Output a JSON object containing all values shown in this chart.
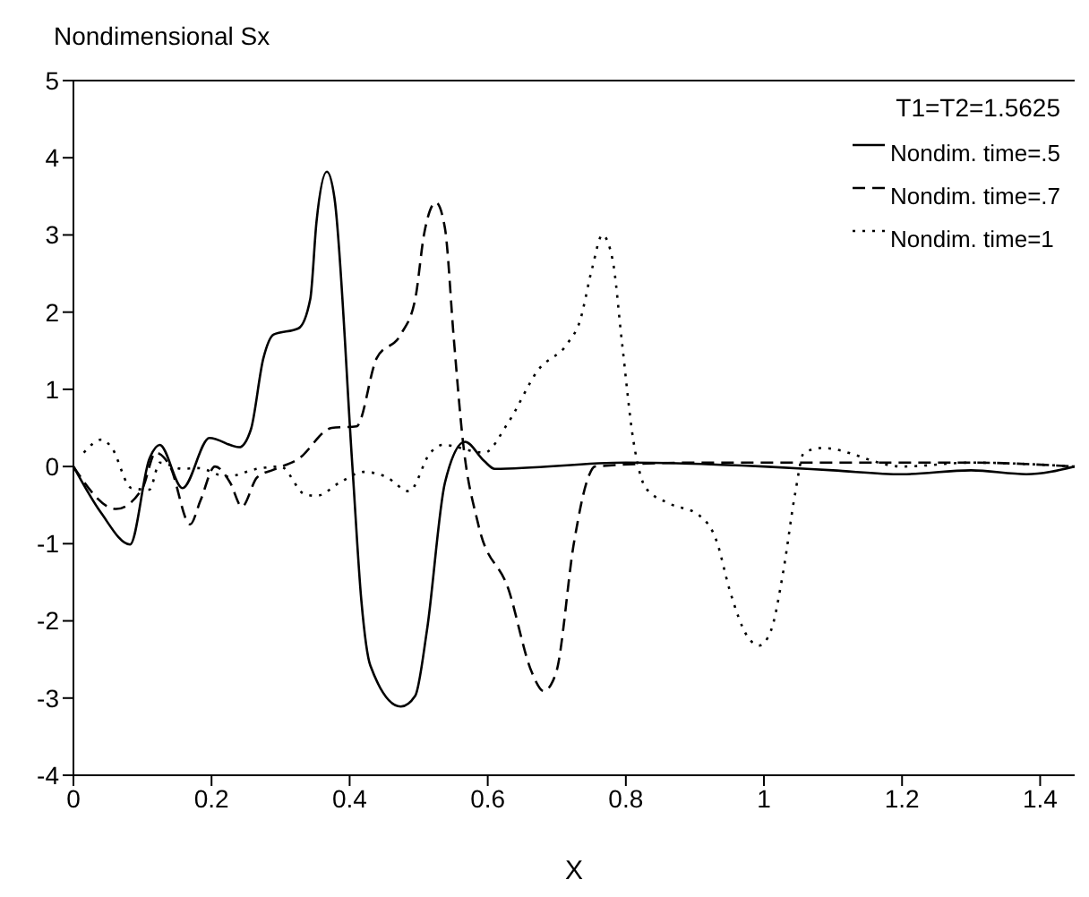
{
  "chart_data": {
    "type": "line",
    "ylabel": "Nondimensional Sx",
    "xlabel": "X",
    "annotations": [
      "T1=T2=1.5625"
    ],
    "xlim": [
      0,
      1.45
    ],
    "xticks": [
      0,
      0.2,
      0.4,
      0.6,
      0.8,
      1,
      1.2,
      1.4
    ],
    "ylim": [
      -4,
      5
    ],
    "yticks": [
      -4,
      -3,
      -2,
      -1,
      0,
      1,
      2,
      3,
      4,
      5
    ],
    "legend": "top right",
    "marker": "none",
    "series": [
      {
        "name": "Nondim. time=.5",
        "color": "#000000",
        "line_style": "solid",
        "x": [
          0,
          0.04,
          0.082,
          0.11,
          0.125,
          0.158,
          0.197,
          0.24,
          0.257,
          0.275,
          0.29,
          0.326,
          0.343,
          0.352,
          0.367,
          0.378,
          0.404,
          0.417,
          0.43,
          0.474,
          0.495,
          0.512,
          0.538,
          0.567,
          0.595,
          0.61,
          0.8,
          1.0,
          1.1,
          1.2,
          1.3,
          1.38,
          1.45
        ],
        "values": [
          0,
          -0.6,
          -1.01,
          0.1,
          0.28,
          -0.28,
          0.37,
          0.25,
          0.48,
          1.4,
          1.71,
          1.79,
          2.17,
          3.17,
          3.82,
          3.48,
          0,
          -1.74,
          -2.58,
          -3.11,
          -2.97,
          -2.12,
          -0.21,
          0.32,
          0.07,
          -0.03,
          0.05,
          0,
          -0.05,
          -0.1,
          -0.05,
          -0.1,
          0
        ]
      },
      {
        "name": "Nondim. time=.7",
        "color": "#000000",
        "line_style": "dashed",
        "x": [
          0,
          0.062,
          0.1,
          0.119,
          0.14,
          0.169,
          0.184,
          0.205,
          0.227,
          0.244,
          0.266,
          0.29,
          0.326,
          0.374,
          0.41,
          0.439,
          0.474,
          0.495,
          0.508,
          0.525,
          0.538,
          0.551,
          0.564,
          0.586,
          0.63,
          0.664,
          0.681,
          0.699,
          0.725,
          0.746,
          0.755,
          0.9,
          1.1,
          1.3,
          1.45
        ],
        "values": [
          0,
          -0.55,
          -0.28,
          0.18,
          0,
          -0.75,
          -0.44,
          0,
          -0.21,
          -0.52,
          -0.14,
          -0.04,
          0.1,
          0.5,
          0.52,
          1.4,
          1.71,
          2.17,
          3.02,
          3.42,
          3.09,
          1.64,
          0.33,
          -0.74,
          -1.59,
          -2.67,
          -2.91,
          -2.67,
          -0.98,
          -0.13,
          0,
          0.05,
          0.05,
          0.05,
          0
        ]
      },
      {
        "name": "Nondim. time=1",
        "color": "#000000",
        "line_style": "dotted",
        "x": [
          0.015,
          0.041,
          0.055,
          0.084,
          0.11,
          0.125,
          0.158,
          0.18,
          0.222,
          0.266,
          0.3,
          0.335,
          0.352,
          0.387,
          0.42,
          0.452,
          0.486,
          0.517,
          0.535,
          0.595,
          0.629,
          0.673,
          0.716,
          0.733,
          0.751,
          0.766,
          0.781,
          0.794,
          0.811,
          0.829,
          0.863,
          0.906,
          0.932,
          0.95,
          0.976,
          0.993,
          1.01,
          1.028,
          1.045,
          1.058,
          1.084,
          1.2,
          1.3,
          1.45
        ],
        "values": [
          0.18,
          0.35,
          0.25,
          -0.28,
          -0.3,
          0.05,
          -0.03,
          -0.02,
          -0.13,
          -0.03,
          0,
          -0.36,
          -0.38,
          -0.2,
          -0.07,
          -0.13,
          -0.32,
          0.18,
          0.28,
          0.18,
          0.56,
          1.25,
          1.6,
          1.87,
          2.56,
          3.0,
          2.67,
          1.64,
          0.33,
          -0.28,
          -0.48,
          -0.63,
          -0.98,
          -1.59,
          -2.2,
          -2.32,
          -2.13,
          -1.36,
          -0.36,
          0.18,
          0.24,
          0,
          0.05,
          0
        ]
      }
    ]
  }
}
